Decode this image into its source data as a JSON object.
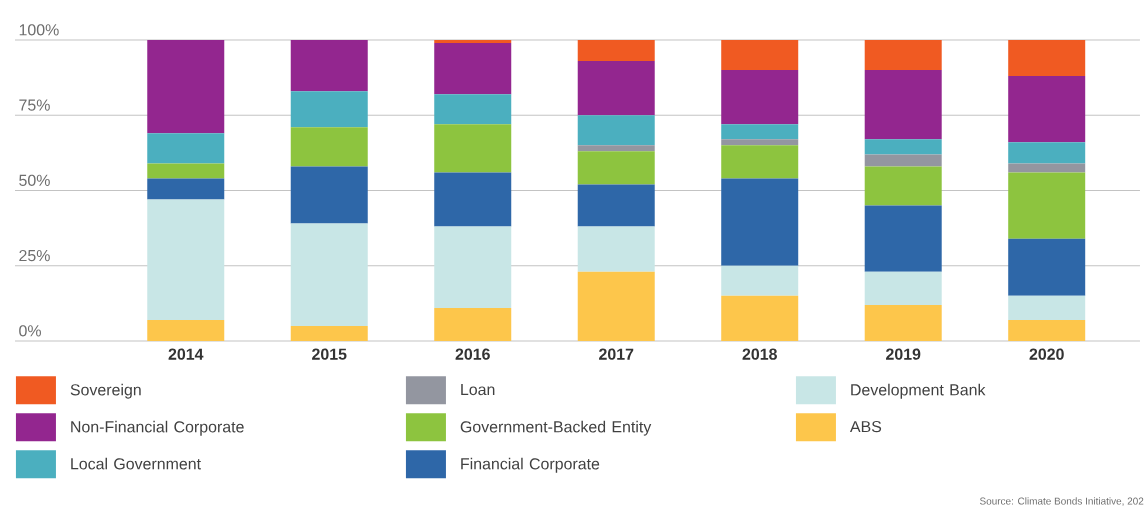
{
  "chart_data": {
    "type": "bar",
    "stacked": true,
    "categories": [
      "2014",
      "2015",
      "2016",
      "2017",
      "2018",
      "2019",
      "2020"
    ],
    "series": [
      {
        "name": "ABS",
        "color": "#fdc64b",
        "values": [
          7,
          5,
          11,
          23,
          15,
          12,
          7
        ]
      },
      {
        "name": "Development Bank",
        "color": "#c8e6e6",
        "values": [
          40,
          34,
          27,
          15,
          10,
          11,
          8
        ]
      },
      {
        "name": "Financial Corporate",
        "color": "#2e67a8",
        "values": [
          7,
          19,
          18,
          14,
          29,
          22,
          19
        ]
      },
      {
        "name": "Government-Backed Entity",
        "color": "#8dc43f",
        "values": [
          5,
          13,
          16,
          11,
          11,
          13,
          22
        ]
      },
      {
        "name": "Loan",
        "color": "#9396a0",
        "values": [
          0,
          0,
          0,
          2,
          2,
          4,
          3
        ]
      },
      {
        "name": "Local Government",
        "color": "#4bafbf",
        "values": [
          10,
          12,
          10,
          10,
          5,
          5,
          7
        ]
      },
      {
        "name": "Non-Financial Corporate",
        "color": "#93268f",
        "values": [
          31,
          17,
          17,
          18,
          18,
          23,
          22
        ]
      },
      {
        "name": "Sovereign",
        "color": "#f05a22",
        "values": [
          0,
          0,
          1,
          7,
          10,
          10,
          12
        ]
      }
    ],
    "ylim": [
      0,
      100
    ],
    "yticks": [
      {
        "value": 0,
        "label": "0%"
      },
      {
        "value": 25,
        "label": "25%"
      },
      {
        "value": 50,
        "label": "50%"
      },
      {
        "value": 75,
        "label": "75%"
      },
      {
        "value": 100,
        "label": "100%"
      }
    ],
    "grid": "y",
    "legend": "bottom",
    "annotations": [
      "Source: Climate Bonds Initiative, 202"
    ]
  }
}
